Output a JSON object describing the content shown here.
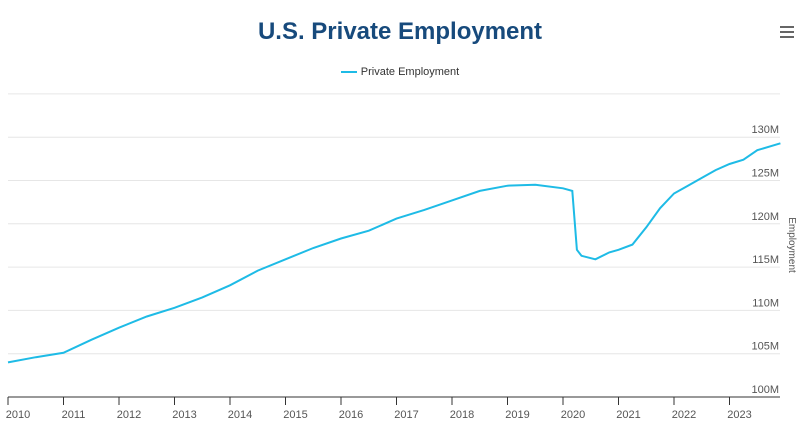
{
  "title": "U.S. Private Employment",
  "menu_icon": "hamburger-menu-icon",
  "chart_data": {
    "type": "line",
    "title": "U.S. Private Employment",
    "ylabel": "Employment",
    "xlabel": "",
    "ylim": [
      100,
      135
    ],
    "yticks": [
      100,
      105,
      110,
      115,
      120,
      125,
      130
    ],
    "ytick_labels": [
      "100M",
      "105M",
      "110M",
      "115M",
      "120M",
      "125M",
      "130M"
    ],
    "xticks": [
      "2010",
      "2011",
      "2012",
      "2013",
      "2014",
      "2015",
      "2016",
      "2017",
      "2018",
      "2019",
      "2020",
      "2021",
      "2022",
      "2023"
    ],
    "grid": true,
    "legend": "top-center",
    "color": "#1ebbe6",
    "series": [
      {
        "name": "Private Employment",
        "unit": "millions",
        "x": [
          "2010-01",
          "2010-07",
          "2011-01",
          "2011-07",
          "2012-01",
          "2012-07",
          "2013-01",
          "2013-07",
          "2014-01",
          "2014-07",
          "2015-01",
          "2015-07",
          "2016-01",
          "2016-07",
          "2017-01",
          "2017-07",
          "2018-01",
          "2018-07",
          "2019-01",
          "2019-07",
          "2020-01",
          "2020-03",
          "2020-04",
          "2020-05",
          "2020-08",
          "2020-11",
          "2021-01",
          "2021-04",
          "2021-07",
          "2021-10",
          "2022-01",
          "2022-04",
          "2022-07",
          "2022-10",
          "2023-01",
          "2023-04",
          "2023-07",
          "2023-12"
        ],
        "values": [
          104.0,
          104.6,
          105.1,
          106.6,
          108.0,
          109.3,
          110.3,
          111.5,
          112.9,
          114.6,
          115.9,
          117.2,
          118.3,
          119.2,
          120.6,
          121.6,
          122.7,
          123.8,
          124.4,
          124.5,
          124.1,
          123.8,
          117.0,
          116.3,
          115.9,
          116.7,
          117.0,
          117.6,
          119.6,
          121.8,
          123.5,
          124.4,
          125.3,
          126.2,
          126.9,
          127.4,
          128.5,
          129.3
        ]
      }
    ]
  }
}
